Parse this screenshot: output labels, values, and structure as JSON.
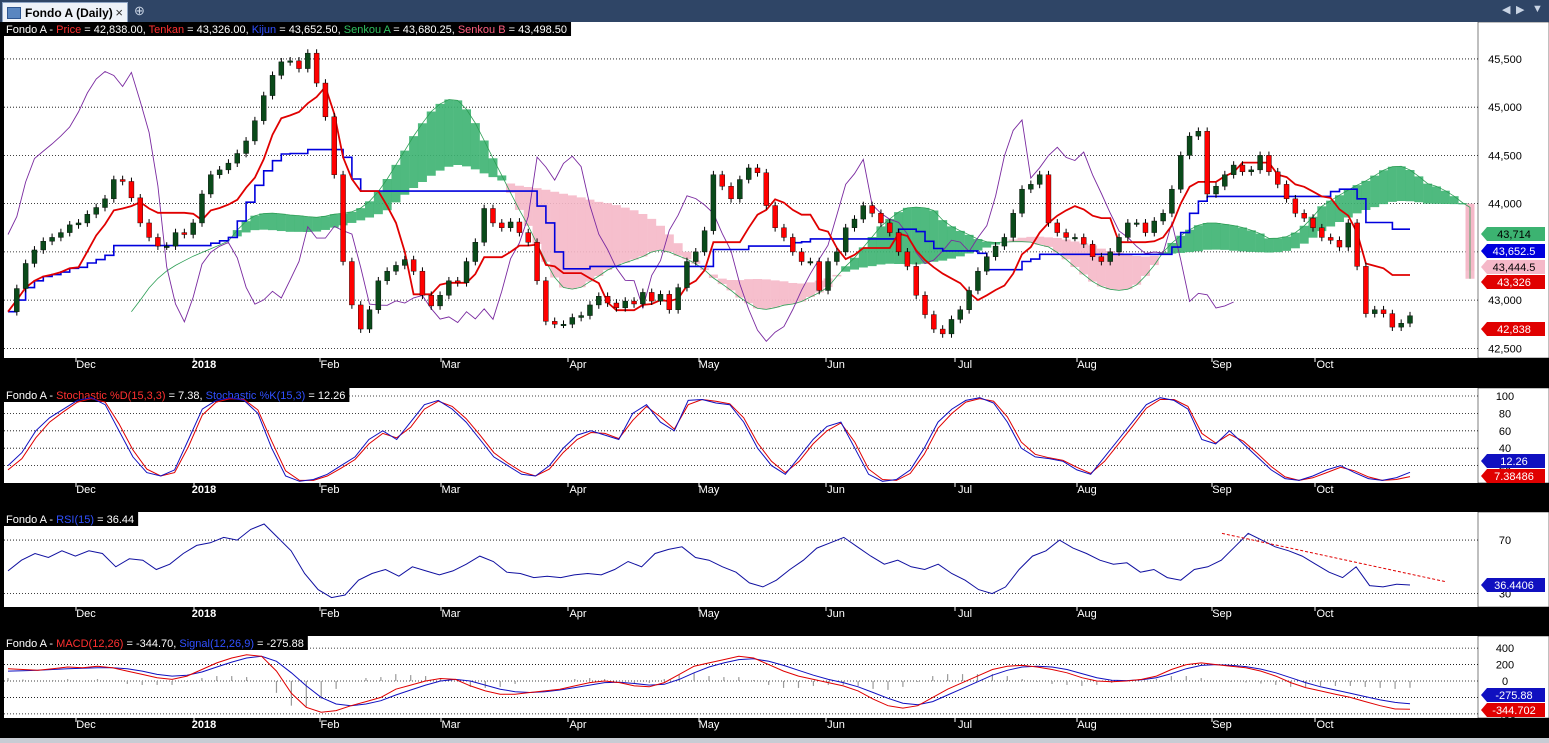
{
  "window": {
    "tab_title": "Fondo A (Daily)",
    "close_glyph": "×",
    "pin_glyph": "⊕",
    "nav_left": "◀",
    "nav_right": "▶",
    "nav_menu": "▼"
  },
  "colors": {
    "price_up": "#0a4a1a",
    "price_down": "#ff0000",
    "tenkan": "#e00000",
    "kijun": "#0000dd",
    "senkou_a": "#2d9e55",
    "senkou_b_cloud": "#f5b8c8",
    "bull_cloud": "#3cb371",
    "chikou": "#7a2aa0",
    "stoch_d": "#e00000",
    "stoch_k": "#1010c0",
    "rsi": "#1010a0",
    "macd": "#e00000",
    "signal": "#1010c0"
  },
  "x_axis_labels": [
    "Dec",
    "2018",
    "Feb",
    "Mar",
    "Apr",
    "May",
    "Jun",
    "Jul",
    "Aug",
    "Sep",
    "Oct"
  ],
  "panels": {
    "price": {
      "legend": [
        {
          "text": "Fondo A - ",
          "color": "#ffffff"
        },
        {
          "text": "Price",
          "color": "#ff3030"
        },
        {
          "text": " = 42,838.00, ",
          "color": "#ffffff"
        },
        {
          "text": "Tenkan",
          "color": "#ff3030"
        },
        {
          "text": " = 43,326.00, ",
          "color": "#ffffff"
        },
        {
          "text": "Kijun",
          "color": "#3050ff"
        },
        {
          "text": " = 43,652.50, ",
          "color": "#ffffff"
        },
        {
          "text": "Senkou A",
          "color": "#30c060"
        },
        {
          "text": " = 43,680.25, ",
          "color": "#ffffff"
        },
        {
          "text": "Senkou B",
          "color": "#ff6080"
        },
        {
          "text": " = 43,498.50",
          "color": "#ffffff"
        }
      ],
      "y_ticks": [
        "45,500",
        "45,000",
        "44,500",
        "44,000",
        "43,500",
        "43,000",
        "42,500"
      ],
      "value_tags": [
        {
          "text": "43,714",
          "bg": "#3cb371",
          "fg": "#000000",
          "value": 43714
        },
        {
          "text": "43,652.5",
          "bg": "#0000dd",
          "fg": "#ffffff",
          "value": 43652.5
        },
        {
          "text": "43,444.5",
          "bg": "#f5b8c8",
          "fg": "#000000",
          "value": 43444.5
        },
        {
          "text": "43,326",
          "bg": "#e00000",
          "fg": "#ffffff",
          "value": 43326
        },
        {
          "text": "42,838",
          "bg": "#e00000",
          "fg": "#ffffff",
          "value": 42838
        }
      ]
    },
    "stochastic": {
      "legend": [
        {
          "text": "Fondo A - ",
          "color": "#ffffff"
        },
        {
          "text": "Stochastic %D(15,3,3)",
          "color": "#ff3030"
        },
        {
          "text": " = 7.38, ",
          "color": "#ffffff"
        },
        {
          "text": "Stochastic %K(15,3)",
          "color": "#3050ff"
        },
        {
          "text": " = 12.26",
          "color": "#ffffff"
        }
      ],
      "y_ticks": [
        "100",
        "80",
        "60",
        "40",
        "20"
      ],
      "value_tags": [
        {
          "text": "12.26",
          "bg": "#1010c0",
          "fg": "#ffffff",
          "value": 12.26
        },
        {
          "text": "7.38486",
          "bg": "#e00000",
          "fg": "#ffffff",
          "value": 7.38486
        }
      ]
    },
    "rsi": {
      "legend": [
        {
          "text": "Fondo A - ",
          "color": "#ffffff"
        },
        {
          "text": "RSI(15)",
          "color": "#3050ff"
        },
        {
          "text": " = 36.44",
          "color": "#ffffff"
        }
      ],
      "y_ticks": [
        "70",
        "30"
      ],
      "value_tags": [
        {
          "text": "36.4406",
          "bg": "#1010c0",
          "fg": "#ffffff",
          "value": 36.4406
        }
      ]
    },
    "macd": {
      "legend": [
        {
          "text": "Fondo A - ",
          "color": "#ffffff"
        },
        {
          "text": "MACD(12,26)",
          "color": "#ff3030"
        },
        {
          "text": " = -344.70, ",
          "color": "#ffffff"
        },
        {
          "text": "Signal(12,26,9)",
          "color": "#3050ff"
        },
        {
          "text": " = -275.88",
          "color": "#ffffff"
        }
      ],
      "y_ticks": [
        "400",
        "200",
        "0",
        "-200",
        "-400"
      ],
      "value_tags": [
        {
          "text": "-275.88",
          "bg": "#1010c0",
          "fg": "#ffffff",
          "value": -275.88
        },
        {
          "text": "-344.702",
          "bg": "#e00000",
          "fg": "#ffffff",
          "value": -344.702
        }
      ]
    }
  },
  "chart_data": [
    {
      "type": "line",
      "title": "Fondo A (Daily)",
      "note": "Ichimoku price chart; daily candlesticks (values estimated, sampled)",
      "ylim": [
        42400,
        45800
      ],
      "grid": true,
      "legend": "top-left",
      "month_boundaries": [
        "Dec",
        "2018",
        "Feb",
        "Mar",
        "Apr",
        "May",
        "Jun",
        "Jul",
        "Aug",
        "Sep",
        "Oct"
      ],
      "price_close": [
        42880,
        43120,
        43380,
        43520,
        43610,
        43650,
        43700,
        43780,
        43800,
        43890,
        43960,
        44050,
        44250,
        44230,
        44060,
        43800,
        43650,
        43560,
        43560,
        43700,
        43680,
        43800,
        44100,
        44300,
        44350,
        44420,
        44520,
        44650,
        44860,
        45120,
        45330,
        45470,
        45480,
        45400,
        45560,
        45250,
        44900,
        44300,
        43400,
        42950,
        42700,
        42900,
        43200,
        43300,
        43360,
        43420,
        43300,
        43050,
        42940,
        43050,
        43200,
        43180,
        43400,
        43600,
        43950,
        43800,
        43750,
        43810,
        43700,
        43600,
        43200,
        42780,
        42750,
        42750,
        42820,
        42840,
        42950,
        43040,
        42970,
        42920,
        42990,
        42960,
        43080,
        42990,
        43060,
        42900,
        43130,
        43400,
        43500,
        43720,
        44300,
        44180,
        44050,
        44250,
        44370,
        44320,
        43980,
        43750,
        43650,
        43500,
        43400,
        43400,
        43100,
        43400,
        43500,
        43750,
        43840,
        43980,
        43900,
        43800,
        43700,
        43500,
        43350,
        43050,
        42850,
        42700,
        42650,
        42800,
        42900,
        43100,
        43300,
        43450,
        43560,
        43650,
        43900,
        44150,
        44200,
        44300,
        43800,
        43700,
        43650,
        43650,
        43580,
        43450,
        43400,
        43500,
        43650,
        43800,
        43800,
        43700,
        43820,
        43900,
        44150,
        44500,
        44700,
        44750,
        44100,
        44180,
        44300,
        44400,
        44330,
        44350,
        44500,
        44330,
        44200,
        44050,
        43900,
        43850,
        43750,
        43650,
        43620,
        43550,
        43800,
        43350,
        42860,
        42900,
        42860,
        42720,
        42760,
        42838
      ],
      "tenkan_last": 43326,
      "kijun_last": 43652.5,
      "senkou_a_last": 43680.25,
      "senkou_b_last": 43498.5
    },
    {
      "type": "line",
      "title": "Stochastic %D(15,3,3), Stochastic %K(15,3)",
      "ylim": [
        0,
        100
      ],
      "series": [
        {
          "name": "Stochastic %K(15,3)",
          "values": [
            20,
            35,
            60,
            75,
            85,
            95,
            98,
            90,
            60,
            30,
            12,
            8,
            15,
            50,
            85,
            95,
            98,
            95,
            80,
            40,
            8,
            2,
            4,
            10,
            20,
            30,
            50,
            60,
            50,
            70,
            90,
            95,
            85,
            70,
            50,
            30,
            20,
            10,
            8,
            20,
            40,
            55,
            60,
            55,
            50,
            80,
            90,
            70,
            60,
            95,
            96,
            92,
            90,
            70,
            40,
            20,
            10,
            30,
            50,
            65,
            70,
            40,
            10,
            2,
            4,
            15,
            40,
            70,
            85,
            95,
            98,
            92,
            70,
            40,
            30,
            28,
            25,
            15,
            10,
            30,
            50,
            70,
            90,
            98,
            95,
            85,
            50,
            45,
            60,
            45,
            30,
            15,
            5,
            3,
            8,
            15,
            20,
            12,
            5,
            3,
            6,
            12.26
          ]
        },
        {
          "name": "Stochastic %D(15,3,3)",
          "values": [
            15,
            28,
            52,
            70,
            82,
            93,
            97,
            93,
            68,
            38,
            16,
            8,
            12,
            42,
            78,
            93,
            97,
            96,
            84,
            48,
            14,
            3,
            3,
            8,
            17,
            27,
            45,
            57,
            52,
            64,
            85,
            94,
            88,
            74,
            55,
            35,
            23,
            13,
            8,
            16,
            35,
            50,
            58,
            57,
            51,
            72,
            88,
            76,
            62,
            90,
            96,
            94,
            91,
            75,
            46,
            25,
            12,
            25,
            45,
            60,
            69,
            47,
            16,
            4,
            3,
            11,
            33,
            63,
            80,
            93,
            97,
            94,
            76,
            47,
            33,
            29,
            26,
            18,
            11,
            25,
            45,
            65,
            86,
            96,
            96,
            88,
            57,
            46,
            56,
            48,
            34,
            19,
            7,
            3,
            6,
            12,
            18,
            14,
            7,
            3,
            4,
            7.38
          ]
        }
      ]
    },
    {
      "type": "line",
      "title": "RSI(15)",
      "ylim": [
        20,
        85
      ],
      "series": [
        {
          "name": "RSI(15)",
          "values": [
            47,
            55,
            60,
            57,
            62,
            58,
            62,
            60,
            50,
            56,
            55,
            48,
            52,
            60,
            66,
            68,
            72,
            70,
            78,
            82,
            72,
            62,
            45,
            33,
            27,
            29,
            40,
            45,
            48,
            43,
            50,
            47,
            44,
            47,
            52,
            58,
            54,
            46,
            45,
            42,
            43,
            42,
            44,
            45,
            44,
            48,
            54,
            50,
            60,
            63,
            65,
            57,
            55,
            50,
            46,
            38,
            35,
            40,
            48,
            55,
            64,
            68,
            72,
            65,
            58,
            52,
            55,
            50,
            48,
            52,
            45,
            40,
            33,
            30,
            35,
            48,
            58,
            62,
            70,
            64,
            60,
            55,
            52,
            53,
            46,
            48,
            42,
            40,
            48,
            50,
            55,
            65,
            75,
            70,
            65,
            62,
            58,
            52,
            46,
            42,
            50,
            36,
            35,
            37,
            36.44
          ]
        }
      ]
    },
    {
      "type": "line",
      "title": "MACD(12,26), Signal(12,26,9)",
      "ylim": [
        -450,
        450
      ],
      "series": [
        {
          "name": "MACD(12,26)",
          "values": [
            150,
            140,
            130,
            150,
            170,
            160,
            180,
            160,
            120,
            80,
            40,
            20,
            60,
            140,
            220,
            280,
            320,
            300,
            120,
            -150,
            -320,
            -380,
            -360,
            -300,
            -250,
            -200,
            -100,
            -50,
            0,
            30,
            20,
            -60,
            -120,
            -160,
            -160,
            -140,
            -120,
            -100,
            -60,
            -20,
            0,
            -20,
            -60,
            -70,
            -20,
            80,
            180,
            220,
            260,
            300,
            280,
            200,
            120,
            60,
            20,
            -20,
            -60,
            -120,
            -220,
            -300,
            -330,
            -300,
            -200,
            -100,
            -20,
            60,
            140,
            180,
            190,
            170,
            140,
            100,
            40,
            0,
            -10,
            0,
            20,
            60,
            140,
            200,
            220,
            200,
            180,
            160,
            120,
            60,
            -20,
            -80,
            -120,
            -160,
            -200,
            -250,
            -300,
            -340,
            -344.7
          ]
        },
        {
          "name": "Signal(12,26,9)",
          "values": [
            120,
            125,
            130,
            140,
            150,
            155,
            160,
            160,
            150,
            120,
            80,
            60,
            70,
            110,
            170,
            230,
            280,
            300,
            240,
            100,
            -60,
            -200,
            -280,
            -300,
            -280,
            -240,
            -170,
            -110,
            -50,
            0,
            20,
            0,
            -50,
            -100,
            -130,
            -140,
            -130,
            -110,
            -80,
            -50,
            -20,
            -15,
            -30,
            -50,
            -40,
            20,
            100,
            170,
            220,
            260,
            270,
            240,
            190,
            130,
            70,
            20,
            -20,
            -70,
            -140,
            -210,
            -270,
            -290,
            -250,
            -170,
            -90,
            -10,
            70,
            130,
            170,
            180,
            170,
            140,
            90,
            40,
            10,
            5,
            15,
            40,
            90,
            150,
            190,
            200,
            190,
            175,
            145,
            100,
            40,
            -20,
            -70,
            -110,
            -150,
            -190,
            -230,
            -260,
            -275.88
          ]
        }
      ]
    }
  ]
}
